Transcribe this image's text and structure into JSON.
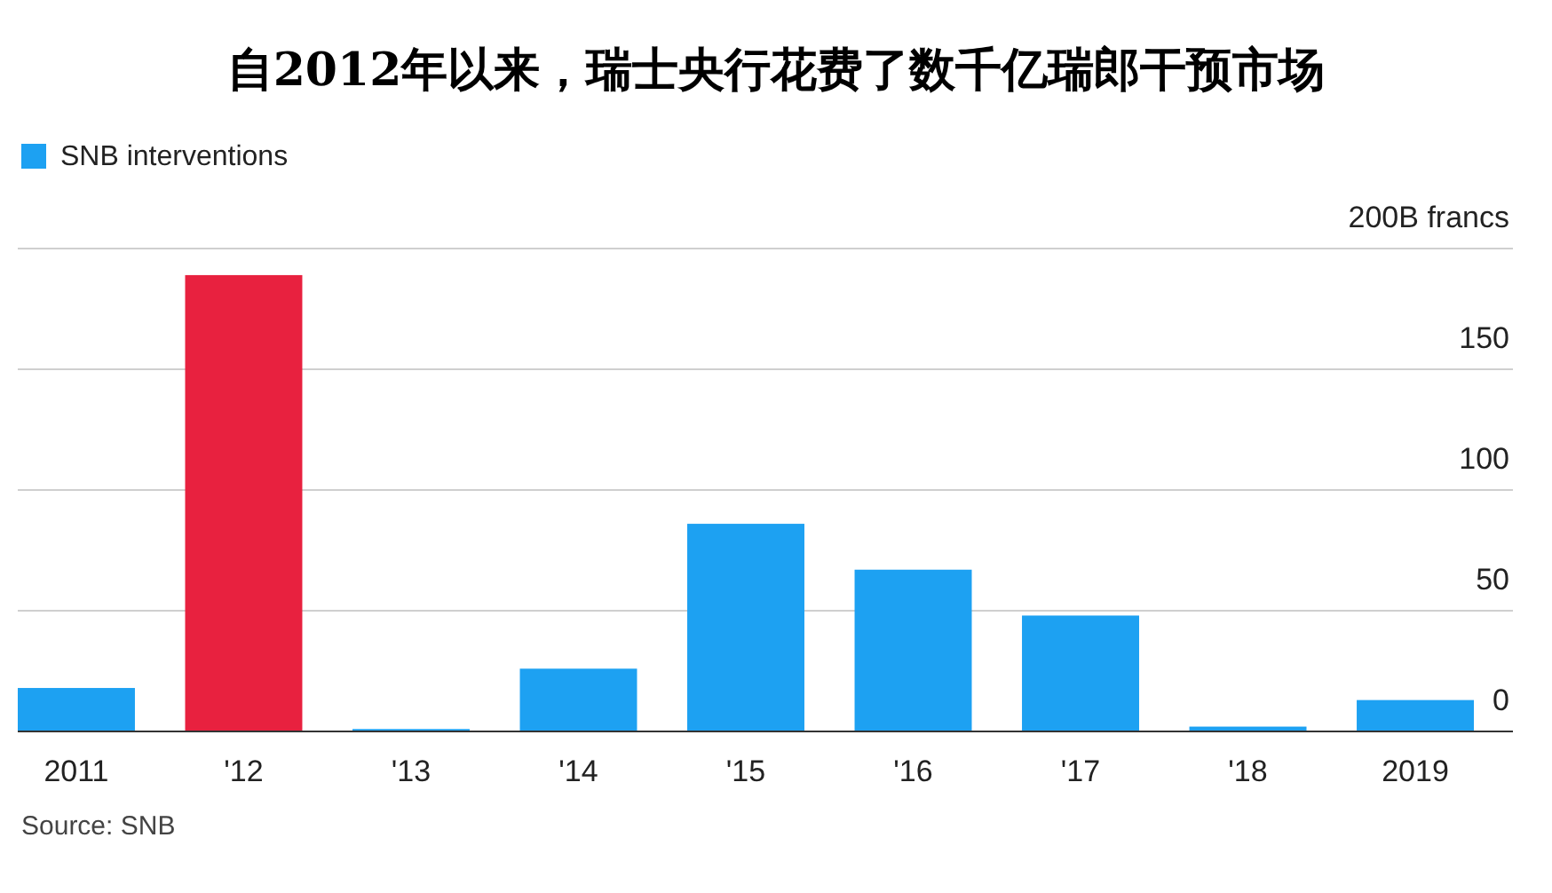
{
  "chart_data": {
    "type": "bar",
    "title": "自2012年以来，瑞士央行花费了数千亿瑞郎干预市场",
    "categories": [
      "2011",
      "'12",
      "'13",
      "'14",
      "'15",
      "'16",
      "'17",
      "'18",
      "2019"
    ],
    "series": [
      {
        "name": "SNB interventions",
        "color": "#1da1f2",
        "values": [
          18,
          189,
          1,
          26,
          86,
          67,
          48,
          2,
          13
        ],
        "colors": [
          "#1da1f2",
          "#e8213f",
          "#1da1f2",
          "#1da1f2",
          "#1da1f2",
          "#1da1f2",
          "#1da1f2",
          "#1da1f2",
          "#1da1f2"
        ]
      }
    ],
    "ylim": [
      0,
      200
    ],
    "yticks": [
      0,
      50,
      100,
      150,
      {
        "value": 200,
        "label": "200B francs"
      }
    ],
    "grid": "y",
    "legend": "top left",
    "annotations": [
      "Source: SNB"
    ]
  }
}
